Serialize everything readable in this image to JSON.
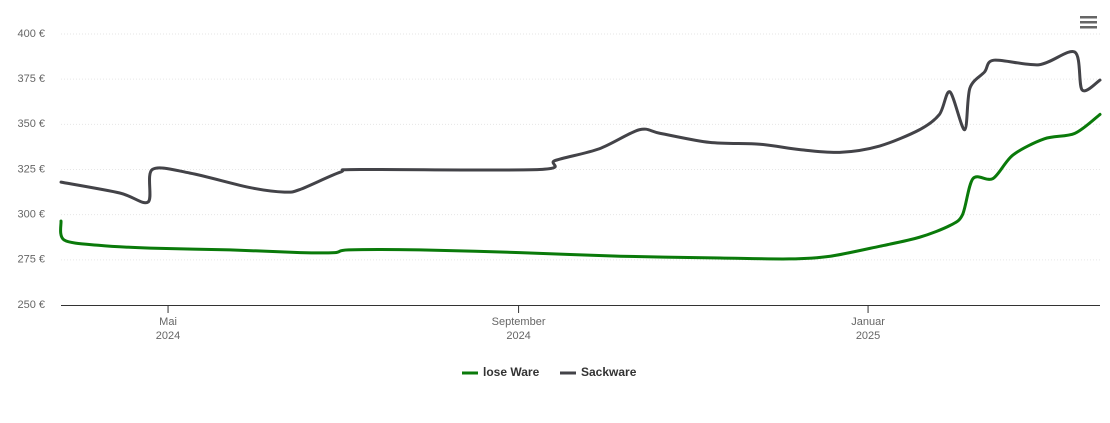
{
  "chart_data": {
    "type": "line",
    "xlim": [
      2024.231,
      2025.221
    ],
    "xticks": [
      {
        "value": 2024.333,
        "label": [
          "Mai",
          "2024"
        ]
      },
      {
        "value": 2024.667,
        "label": [
          "September",
          "2024"
        ]
      },
      {
        "value": 2025.0,
        "label": [
          "Januar",
          "2025"
        ]
      }
    ],
    "ylim": [
      250,
      400
    ],
    "yticks": [
      {
        "value": 250,
        "label": "250 €"
      },
      {
        "value": 275,
        "label": "275 €"
      },
      {
        "value": 300,
        "label": "300 €"
      },
      {
        "value": 325,
        "label": "325 €"
      },
      {
        "value": 350,
        "label": "350 €"
      },
      {
        "value": 375,
        "label": "375 €"
      },
      {
        "value": 400,
        "label": "400 €"
      }
    ],
    "grid": true,
    "legend": "bottom",
    "series": [
      {
        "name": "lose Ware",
        "color": "#0a7a0a",
        "x": [
          2024.231,
          2024.234,
          2024.268,
          2024.316,
          2024.392,
          2024.459,
          2024.492,
          2024.505,
          2024.573,
          2024.668,
          2024.764,
          2024.859,
          2024.925,
          2024.964,
          2025.011,
          2025.049,
          2025.078,
          2025.09,
          2025.1,
          2025.119,
          2025.138,
          2025.168,
          2025.197,
          2025.221
        ],
        "values": [
          296.5,
          286,
          283,
          281.5,
          280.5,
          279,
          279,
          280.5,
          280.5,
          279,
          277,
          276,
          275.5,
          277,
          282.5,
          287.5,
          294,
          300,
          320,
          320,
          333,
          342,
          345,
          355.5
        ]
      },
      {
        "name": "Sackware",
        "color": "#434348",
        "x": [
          2024.231,
          2024.287,
          2024.314,
          2024.318,
          2024.354,
          2024.411,
          2024.444,
          2024.459,
          2024.497,
          2024.516,
          2024.687,
          2024.702,
          2024.744,
          2024.782,
          2024.802,
          2024.849,
          2024.897,
          2024.935,
          2024.973,
          2025.011,
          2025.049,
          2025.068,
          2025.078,
          2025.092,
          2025.097,
          2025.111,
          2025.12,
          2025.163,
          2025.197,
          2025.204,
          2025.221
        ],
        "values": [
          318,
          312,
          307,
          325,
          323,
          315,
          312.5,
          314,
          323.5,
          325,
          325,
          330,
          336.5,
          347,
          345,
          340,
          339,
          336,
          334.5,
          338,
          347,
          355.5,
          368,
          347,
          370,
          379,
          385.5,
          383,
          390,
          369,
          374.5
        ]
      }
    ]
  }
}
